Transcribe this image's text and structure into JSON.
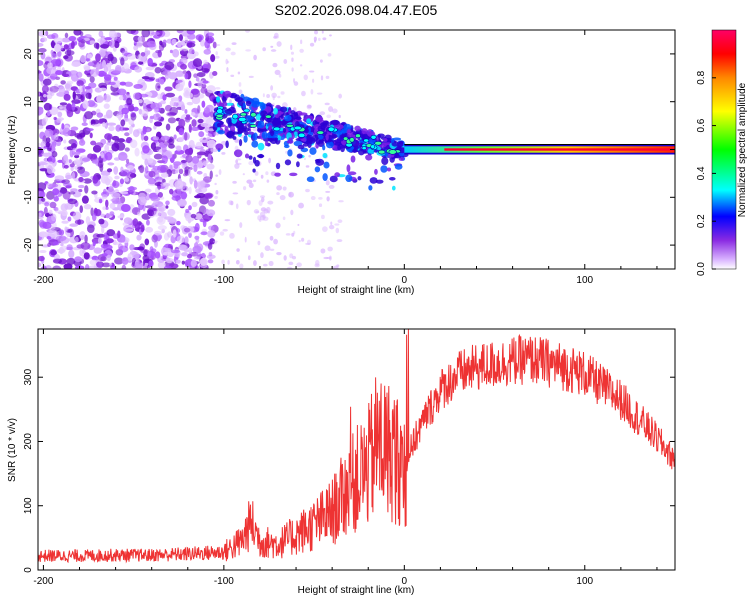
{
  "title": "S202.2026.098.04.47.E05",
  "colors": {
    "line": "#ee3333",
    "frame": "#000000",
    "spectral_low": "#cc66ff",
    "spectral_band": "#ff0033"
  },
  "chart_data": [
    {
      "type": "heatmap",
      "title": "S202.2026.098.04.47.E05",
      "xlabel": "Height of straight line (km)",
      "ylabel": "Frequency (Hz)",
      "xlim": [
        -203,
        150
      ],
      "ylim": [
        -25,
        25
      ],
      "xticks": [
        -200,
        -100,
        0,
        100
      ],
      "xtick_labels": [
        "-200",
        "-100",
        "0",
        "100"
      ],
      "yticks": [
        -20,
        -10,
        0,
        10,
        20
      ],
      "ytick_labels": [
        "-20",
        "-10",
        "0",
        "10",
        "20"
      ],
      "colorbar": {
        "label": "Normalized spectral amplitude",
        "range": [
          0,
          1
        ],
        "ticks": [
          0.0,
          0.2,
          0.4,
          0.6,
          0.8
        ],
        "tick_labels": [
          "0.0",
          "0.2",
          "0.4",
          "0.6",
          "0.8"
        ]
      },
      "description_data": {
        "noise_region_km": [
          -203,
          -105
        ],
        "chirp_start": {
          "height_km": -105,
          "frequency_hz": 8
        },
        "chirp_end": {
          "height_km": 0,
          "frequency_hz": 0
        },
        "flat_band_frequency_hz": 0
      }
    },
    {
      "type": "line",
      "xlabel": "Height of straight line (km)",
      "ylabel": "SNR (10 * v/v)",
      "xlim": [
        -203,
        150
      ],
      "ylim": [
        0,
        375
      ],
      "xticks": [
        -200,
        -100,
        0,
        100
      ],
      "xtick_labels": [
        "-200",
        "-100",
        "0",
        "100"
      ],
      "yticks": [
        0,
        100,
        200,
        300
      ],
      "ytick_labels": [
        "0",
        "100",
        "200",
        "300"
      ],
      "series": [
        {
          "name": "SNR",
          "x": [
            -203,
            -180,
            -160,
            -140,
            -120,
            -100,
            -90,
            -85,
            -80,
            -70,
            -60,
            -50,
            -40,
            -30,
            -20,
            -15,
            -10,
            0,
            10,
            20,
            30,
            40,
            50,
            60,
            70,
            80,
            90,
            100,
            110,
            120,
            130,
            140,
            150
          ],
          "y": [
            22,
            22,
            23,
            23,
            25,
            28,
            45,
            75,
            45,
            40,
            55,
            70,
            90,
            130,
            160,
            200,
            190,
            165,
            230,
            280,
            305,
            315,
            320,
            325,
            328,
            322,
            315,
            305,
            285,
            265,
            235,
            205,
            170
          ]
        }
      ]
    }
  ]
}
